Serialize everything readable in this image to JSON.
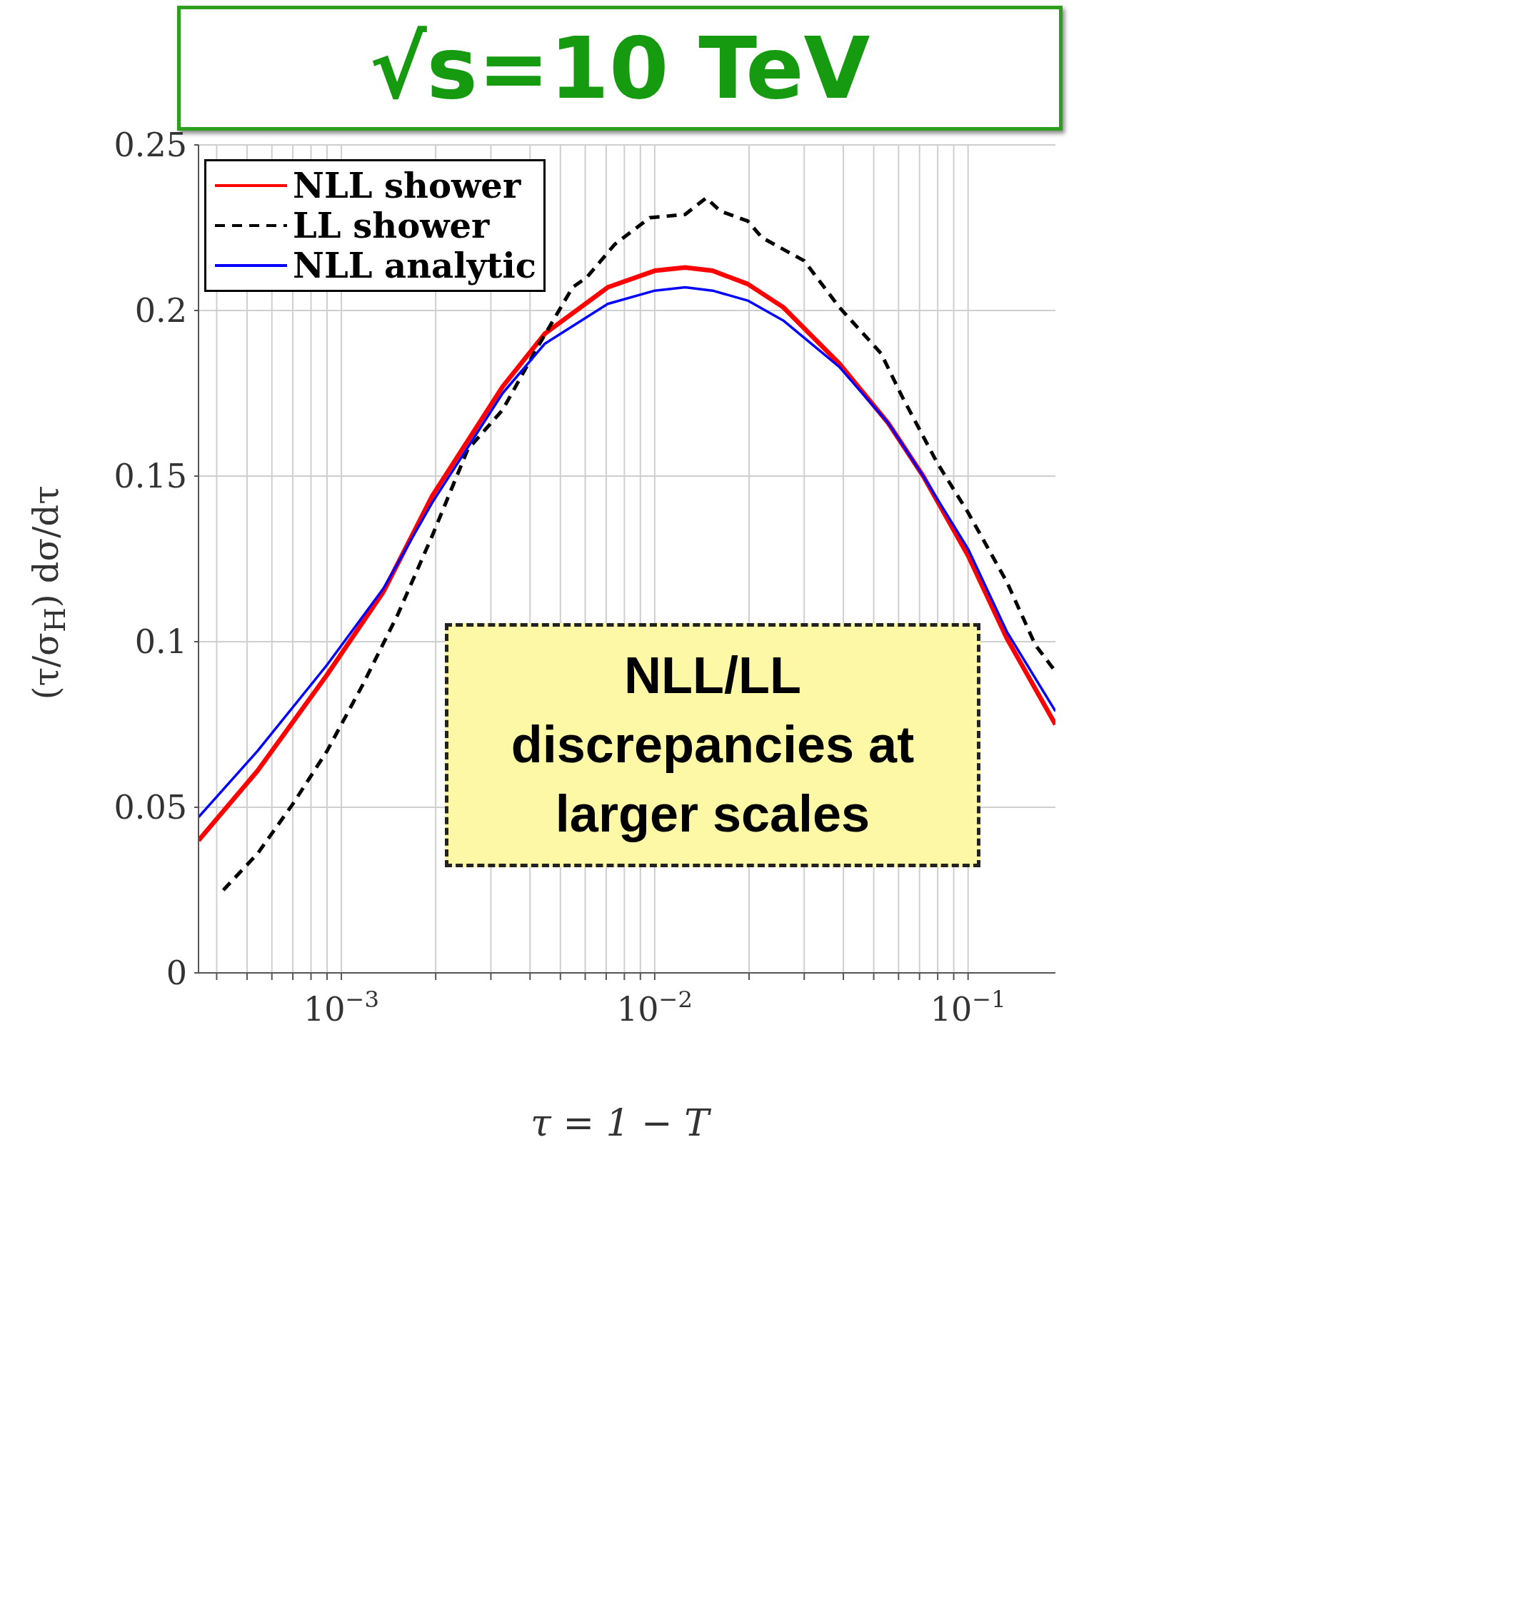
{
  "chart_data": {
    "type": "line",
    "title": "√s=10 TeV",
    "xlabel": "τ = 1 − T",
    "ylabel": "(τ/σ$_{H}$) dσ/dτ",
    "annotations": [
      "NLL/LL discrepancies at larger scales"
    ],
    "log": "x",
    "grid": true,
    "legend": "top left",
    "marker": "none",
    "xlim": [
      0.00035,
      0.19
    ],
    "ylim": [
      0,
      0.25
    ],
    "xticks": [
      {
        "value": 0.0004,
        "label": null
      },
      {
        "value": 0.0005,
        "label": null
      },
      {
        "value": 0.0006,
        "label": null
      },
      {
        "value": 0.0007,
        "label": null
      },
      {
        "value": 0.0008,
        "label": null
      },
      {
        "value": 0.0009,
        "label": null
      },
      {
        "value": 0.001,
        "label": "10$^{−3}$"
      },
      {
        "value": 0.002,
        "label": null
      },
      {
        "value": 0.003,
        "label": null
      },
      {
        "value": 0.004,
        "label": null
      },
      {
        "value": 0.005,
        "label": null
      },
      {
        "value": 0.006,
        "label": null
      },
      {
        "value": 0.007,
        "label": null
      },
      {
        "value": 0.008,
        "label": null
      },
      {
        "value": 0.009,
        "label": null
      },
      {
        "value": 0.01,
        "label": "10$^{−2}$"
      },
      {
        "value": 0.02,
        "label": null
      },
      {
        "value": 0.03,
        "label": null
      },
      {
        "value": 0.04,
        "label": null
      },
      {
        "value": 0.05,
        "label": null
      },
      {
        "value": 0.06,
        "label": null
      },
      {
        "value": 0.07,
        "label": null
      },
      {
        "value": 0.08,
        "label": null
      },
      {
        "value": 0.09,
        "label": null
      },
      {
        "value": 0.1,
        "label": "10$^{−1}$"
      }
    ],
    "yticks": [
      0,
      0.05,
      0.1,
      0.15,
      0.2,
      0.25
    ],
    "series": [
      {
        "name": "NLL shower",
        "color": "#ff0000",
        "line_style": "solid",
        "x": [
          0.00035,
          0.00054,
          0.0009,
          0.00136,
          0.00195,
          0.00327,
          0.00446,
          0.00708,
          0.01,
          0.0125,
          0.0153,
          0.0198,
          0.0257,
          0.0388,
          0.0556,
          0.0719,
          0.1,
          0.133,
          0.19
        ],
        "values": [
          0.04,
          0.061,
          0.09,
          0.115,
          0.144,
          0.177,
          0.193,
          0.207,
          0.212,
          0.213,
          0.212,
          0.208,
          0.201,
          0.184,
          0.166,
          0.15,
          0.126,
          0.101,
          0.075
        ]
      },
      {
        "name": "LL shower",
        "color": "#000000",
        "line_style": "dashed",
        "x": [
          0.00042,
          0.00054,
          0.0007,
          0.0009,
          0.00117,
          0.00151,
          0.00195,
          0.00253,
          0.00327,
          0.00423,
          0.00547,
          0.00607,
          0.00746,
          0.00965,
          0.0125,
          0.0146,
          0.0162,
          0.0198,
          0.022,
          0.03,
          0.0388,
          0.0528,
          0.0616,
          0.0797,
          0.1,
          0.133,
          0.164,
          0.19
        ],
        "values": [
          0.025,
          0.036,
          0.051,
          0.067,
          0.087,
          0.108,
          0.132,
          0.158,
          0.17,
          0.189,
          0.207,
          0.21,
          0.22,
          0.228,
          0.229,
          0.234,
          0.23,
          0.227,
          0.222,
          0.215,
          0.201,
          0.187,
          0.174,
          0.154,
          0.139,
          0.118,
          0.099,
          0.091
        ]
      },
      {
        "name": "NLL analytic",
        "color": "#0000ff",
        "line_style": "solid",
        "x": [
          0.00035,
          0.00054,
          0.0009,
          0.00136,
          0.00195,
          0.00327,
          0.00446,
          0.00708,
          0.01,
          0.0125,
          0.0153,
          0.0198,
          0.0257,
          0.0388,
          0.0556,
          0.0719,
          0.1,
          0.133,
          0.19
        ],
        "values": [
          0.047,
          0.067,
          0.093,
          0.116,
          0.142,
          0.175,
          0.19,
          0.202,
          0.206,
          0.207,
          0.206,
          0.203,
          0.197,
          0.183,
          0.166,
          0.15,
          0.128,
          0.103,
          0.079
        ]
      }
    ]
  }
}
